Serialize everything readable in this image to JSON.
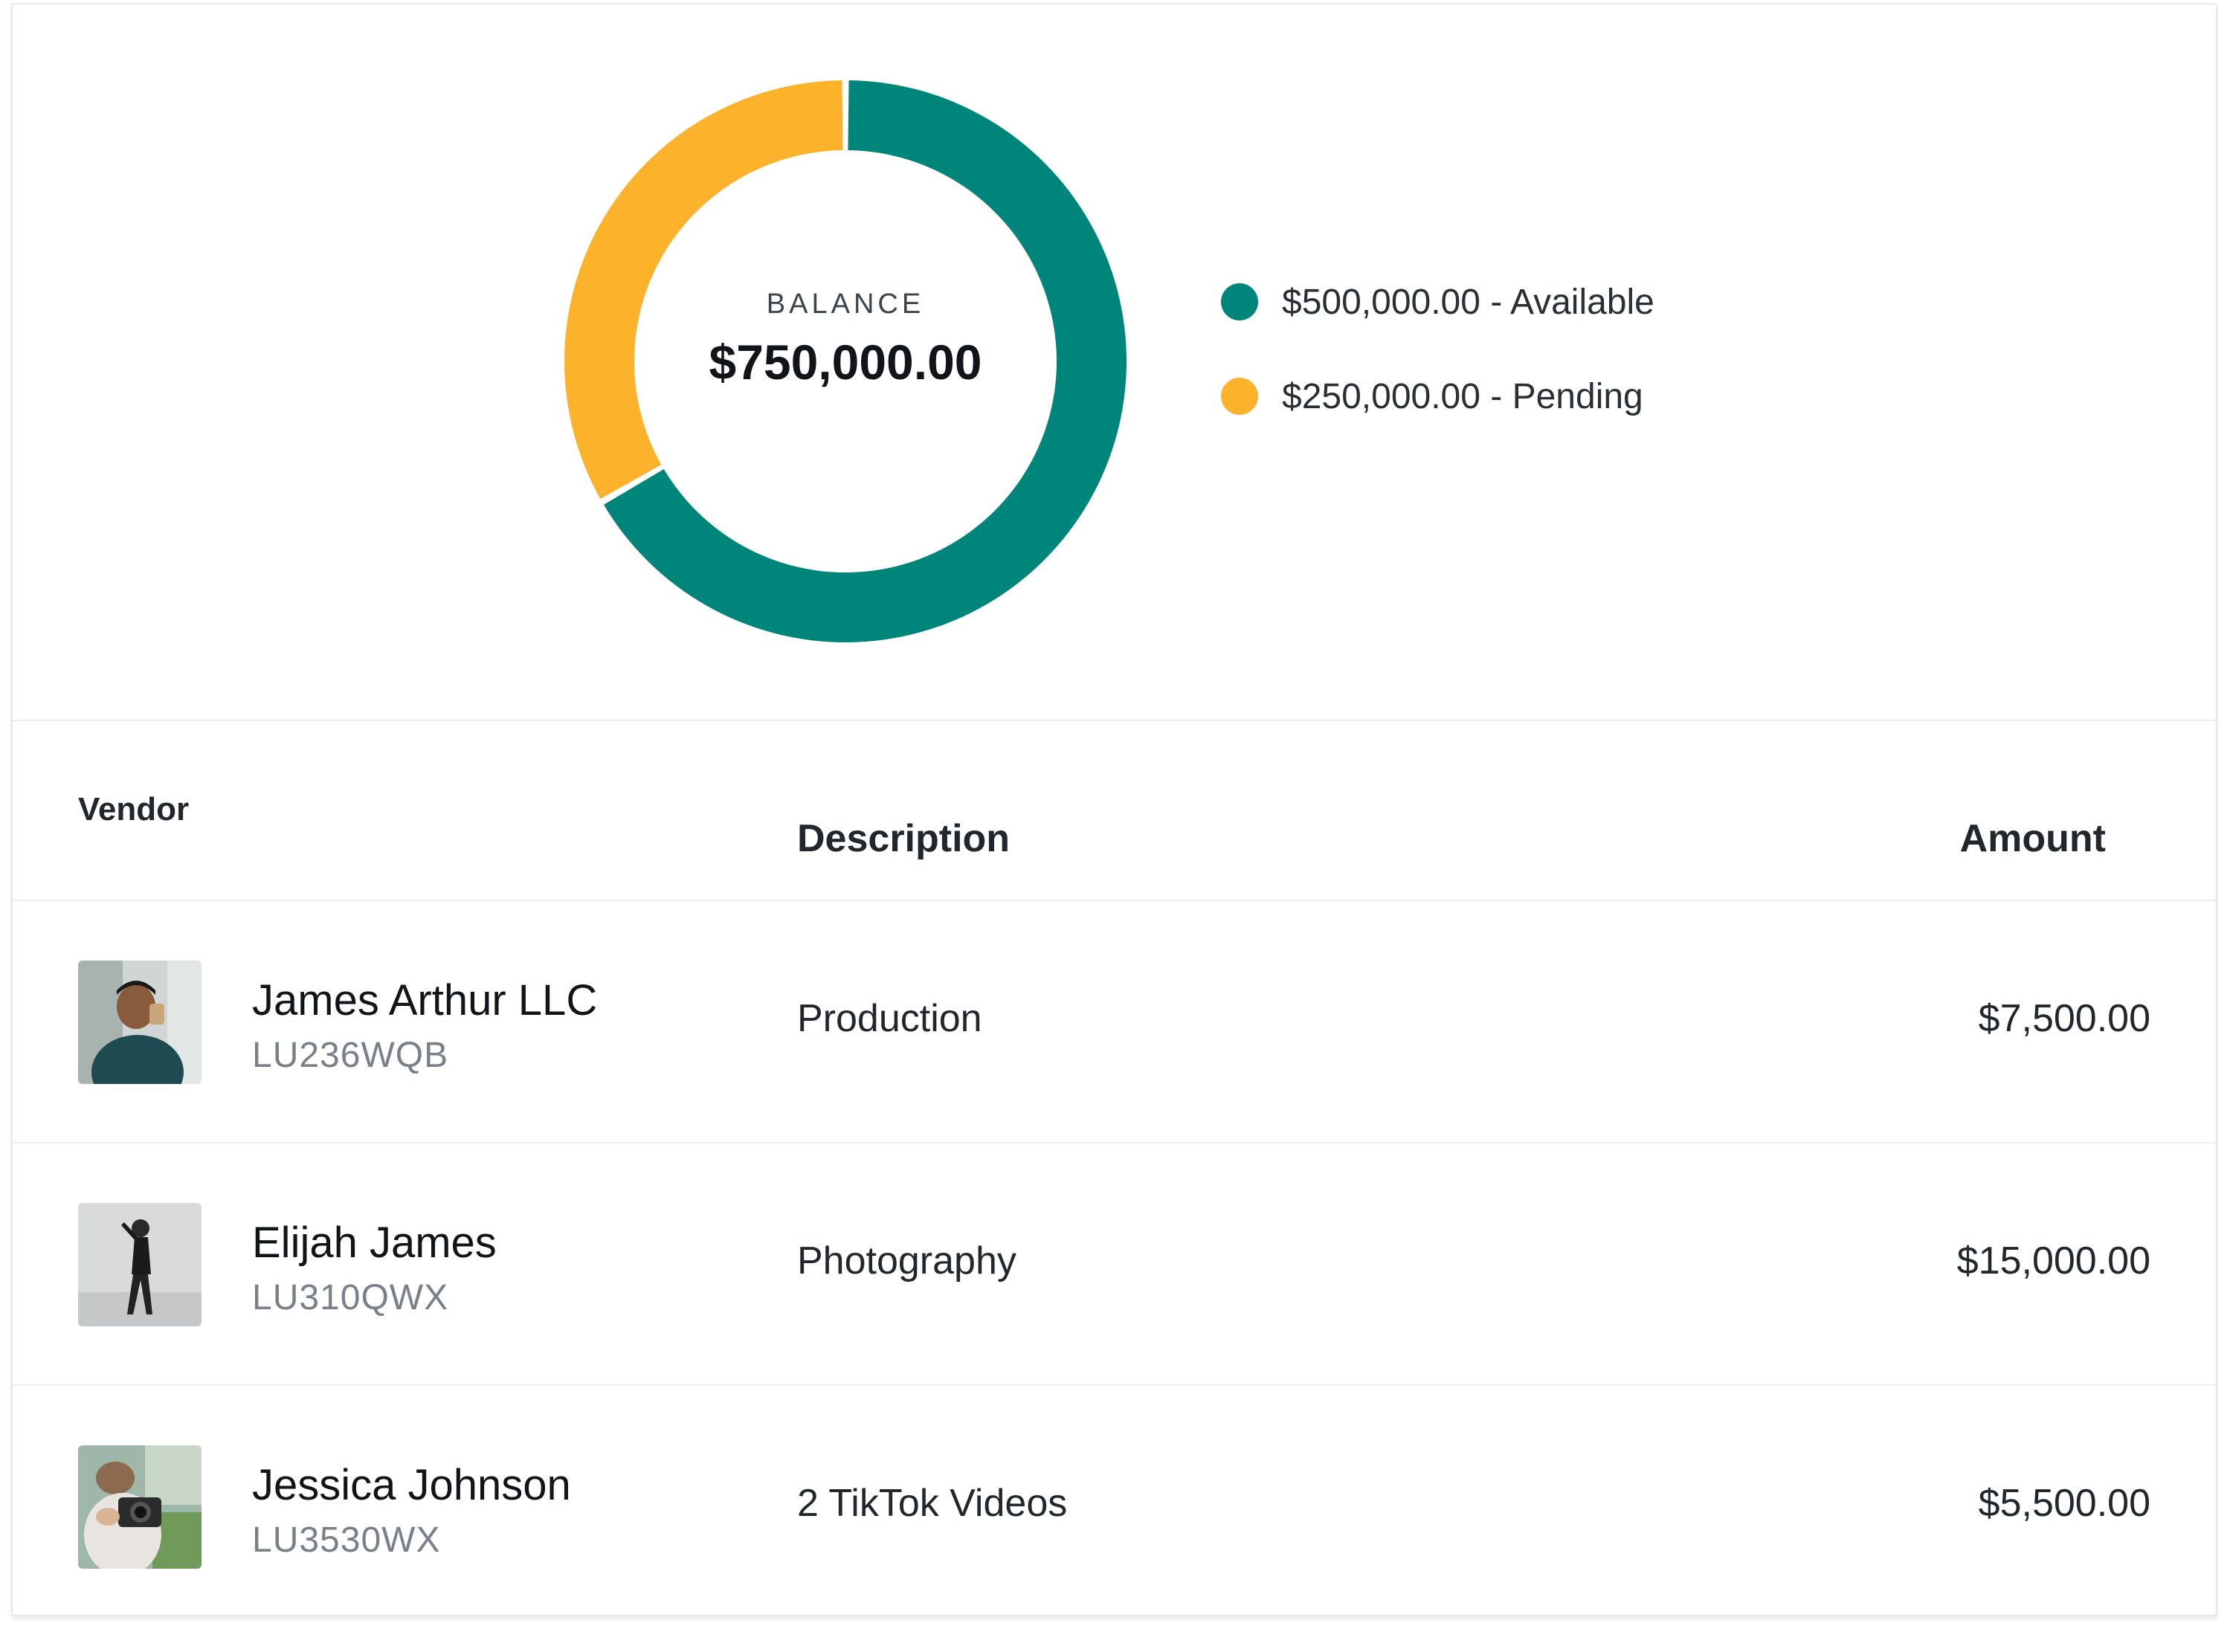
{
  "chart_data": {
    "type": "pie",
    "variant": "donut",
    "center_label": "BALANCE",
    "center_value": "$750,000.00",
    "total": 750000,
    "slices": [
      {
        "label": "$500,000.00 - Available",
        "value": 500000,
        "color": "#00857a"
      },
      {
        "label": "$250,000.00 - Pending",
        "value": 250000,
        "color": "#fdb22b"
      }
    ],
    "legend_position": "right"
  },
  "table": {
    "headers": {
      "vendor": "Vendor",
      "description": "Description",
      "amount": "Amount"
    },
    "rows": [
      {
        "name": "James Arthur LLC",
        "code": "LU236WQB",
        "description": "Production",
        "amount": "$7,500.00",
        "avatar": "person-photo"
      },
      {
        "name": "Elijah James",
        "code": "LU310QWX",
        "description": "Photography",
        "amount": "$15,000.00",
        "avatar": "person-photo"
      },
      {
        "name": "Jessica Johnson",
        "code": "LU3530WX",
        "description": "2 TikTok Videos",
        "amount": "$5,500.00",
        "avatar": "person-photo"
      }
    ]
  },
  "colors": {
    "available": "#00857a",
    "pending": "#fdb22b"
  }
}
